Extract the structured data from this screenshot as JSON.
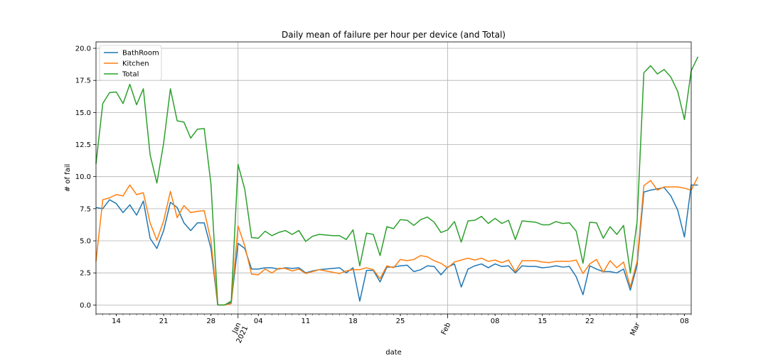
{
  "chart_data": {
    "type": "line",
    "title": "Daily mean of failure per hour per device (and Total)",
    "xlabel": "date",
    "ylabel": "# of fail",
    "ylim": [
      -0.7,
      20.5
    ],
    "yticks": [
      0.0,
      2.5,
      5.0,
      7.5,
      10.0,
      12.5,
      15.0,
      17.5,
      20.0
    ],
    "ytick_labels": [
      "0.0",
      "2.5",
      "5.0",
      "7.5",
      "10.0",
      "12.5",
      "15.0",
      "17.5",
      "20.0"
    ],
    "x_start": "2020-12-11",
    "x_end": "2021-03-09",
    "grid": true,
    "legend_position": "upper-left",
    "xticks_major": [
      {
        "date": "2021-01-01",
        "label": "Jan\n2021",
        "rotated": true
      },
      {
        "date": "2021-02-01",
        "label": "Feb",
        "rotated": true
      },
      {
        "date": "2021-03-01",
        "label": "Mar",
        "rotated": true
      }
    ],
    "xticks_minor": [
      {
        "date": "2020-12-14",
        "label": "14"
      },
      {
        "date": "2020-12-21",
        "label": "21"
      },
      {
        "date": "2020-12-28",
        "label": "28"
      },
      {
        "date": "2021-01-04",
        "label": "04"
      },
      {
        "date": "2021-01-11",
        "label": "11"
      },
      {
        "date": "2021-01-18",
        "label": "18"
      },
      {
        "date": "2021-01-25",
        "label": "25"
      },
      {
        "date": "2021-02-08",
        "label": "08"
      },
      {
        "date": "2021-02-15",
        "label": "15"
      },
      {
        "date": "2021-02-22",
        "label": "22"
      },
      {
        "date": "2021-03-08",
        "label": "08"
      }
    ],
    "series": [
      {
        "name": "BathRoom",
        "color": "#1f77b4",
        "values": [
          7.6,
          7.5,
          8.2,
          7.9,
          7.2,
          7.8,
          7.0,
          8.1,
          5.2,
          4.4,
          5.8,
          8.0,
          7.6,
          6.4,
          5.8,
          6.4,
          6.4,
          4.4,
          0.0,
          0.0,
          0.2,
          4.8,
          4.4,
          2.8,
          2.8,
          2.9,
          2.9,
          2.8,
          2.9,
          2.85,
          2.9,
          2.5,
          2.65,
          2.75,
          2.8,
          2.85,
          2.9,
          2.5,
          2.9,
          0.3,
          2.7,
          2.7,
          1.8,
          2.95,
          2.95,
          3.05,
          3.1,
          2.6,
          2.75,
          3.05,
          3.0,
          2.35,
          2.95,
          3.2,
          1.4,
          2.8,
          3.05,
          3.2,
          2.9,
          3.2,
          3.0,
          3.05,
          2.5,
          3.05,
          3.0,
          3.0,
          2.9,
          2.95,
          3.05,
          2.95,
          3.0,
          2.2,
          0.8,
          3.05,
          2.8,
          2.6,
          2.6,
          2.5,
          2.8,
          1.15,
          3.1,
          8.8,
          8.95,
          9.05,
          9.15,
          8.5,
          7.4,
          5.3,
          9.35,
          9.35
        ]
      },
      {
        "name": "Kitchen",
        "color": "#ff7f0e",
        "values": [
          3.4,
          8.2,
          8.35,
          8.6,
          8.5,
          9.35,
          8.6,
          8.75,
          6.4,
          5.05,
          6.55,
          8.85,
          6.8,
          7.75,
          7.2,
          7.3,
          7.35,
          5.0,
          0.0,
          0.0,
          0.1,
          6.15,
          4.6,
          2.4,
          2.35,
          2.8,
          2.5,
          2.85,
          2.85,
          2.65,
          2.8,
          2.45,
          2.6,
          2.75,
          2.65,
          2.55,
          2.45,
          2.65,
          2.75,
          2.75,
          2.9,
          2.75,
          2.05,
          3.05,
          2.9,
          3.55,
          3.45,
          3.55,
          3.85,
          3.75,
          3.45,
          3.25,
          2.9,
          3.35,
          3.5,
          3.65,
          3.5,
          3.65,
          3.4,
          3.5,
          3.3,
          3.5,
          2.6,
          3.45,
          3.45,
          3.45,
          3.35,
          3.3,
          3.4,
          3.4,
          3.4,
          3.5,
          2.45,
          3.2,
          3.55,
          2.55,
          3.45,
          2.9,
          3.35,
          1.4,
          3.4,
          9.3,
          9.7,
          8.95,
          9.2,
          9.2,
          9.2,
          9.1,
          8.95,
          10.0
        ]
      },
      {
        "name": "Total",
        "color": "#2ca02c",
        "values": [
          11.0,
          15.7,
          16.55,
          16.6,
          15.7,
          17.2,
          15.6,
          16.85,
          11.7,
          9.5,
          12.6,
          16.85,
          14.35,
          14.25,
          13.0,
          13.7,
          13.75,
          9.4,
          0.0,
          0.0,
          0.3,
          10.95,
          9.0,
          5.25,
          5.2,
          5.75,
          5.4,
          5.65,
          5.8,
          5.5,
          5.8,
          4.95,
          5.35,
          5.5,
          5.45,
          5.4,
          5.4,
          5.1,
          5.85,
          3.05,
          5.6,
          5.5,
          3.85,
          6.1,
          5.95,
          6.65,
          6.6,
          6.2,
          6.65,
          6.85,
          6.45,
          5.65,
          5.85,
          6.5,
          4.9,
          6.55,
          6.6,
          6.9,
          6.35,
          6.75,
          6.35,
          6.6,
          5.1,
          6.55,
          6.5,
          6.45,
          6.25,
          6.25,
          6.5,
          6.35,
          6.4,
          5.75,
          3.25,
          6.45,
          6.4,
          5.2,
          6.1,
          5.5,
          6.2,
          2.5,
          6.5,
          18.1,
          18.65,
          18.0,
          18.35,
          17.75,
          16.65,
          14.45,
          18.25,
          19.35
        ]
      }
    ]
  }
}
